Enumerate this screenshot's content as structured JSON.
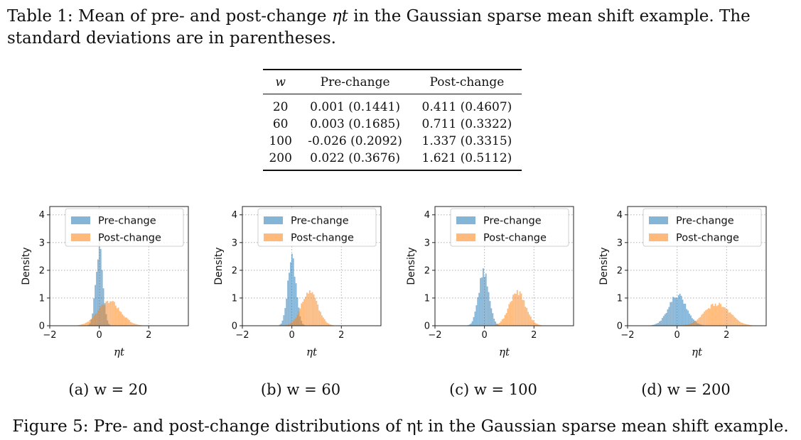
{
  "table_caption": {
    "prefix": "Table 1: Mean of pre- and post-change ",
    "symbol": "ηt",
    "suffix": " in the Gaussian sparse mean shift example.  The standard deviations are in parentheses."
  },
  "table": {
    "headers": [
      "w",
      "Pre-change",
      "Post-change"
    ],
    "rows": [
      [
        "20",
        "0.001 (0.1441)",
        "0.411 (0.4607)"
      ],
      [
        "60",
        "0.003 (0.1685)",
        "0.711 (0.3322)"
      ],
      [
        "100",
        "-0.026 (0.2092)",
        "1.337 (0.3315)"
      ],
      [
        "200",
        "0.022 (0.3676)",
        "1.621 (0.5112)"
      ]
    ]
  },
  "chart_data": [
    {
      "type": "histogram",
      "ylabel": "Density",
      "xlabel": "ηt",
      "xlim": [
        -2,
        3.6
      ],
      "ylim": [
        0,
        4.3
      ],
      "xticks": [
        "−2",
        "0",
        "2"
      ],
      "yticks": [
        "0",
        "1",
        "2",
        "3",
        "4"
      ],
      "legend": [
        "Pre-change",
        "Post-change"
      ],
      "legend_position": "top-right",
      "series": [
        {
          "name": "Pre-change",
          "mean": 0.001,
          "sd": 0.1441,
          "color": "#1f77b4"
        },
        {
          "name": "Post-change",
          "mean": 0.411,
          "sd": 0.4607,
          "color": "#ff7f0e"
        }
      ]
    },
    {
      "type": "histogram",
      "ylabel": "Density",
      "xlabel": "ηt",
      "xlim": [
        -2,
        3.6
      ],
      "ylim": [
        0,
        4.3
      ],
      "xticks": [
        "−2",
        "0",
        "2"
      ],
      "yticks": [
        "0",
        "1",
        "2",
        "3",
        "4"
      ],
      "legend": [
        "Pre-change",
        "Post-change"
      ],
      "legend_position": "top-right",
      "series": [
        {
          "name": "Pre-change",
          "mean": 0.003,
          "sd": 0.1685,
          "color": "#1f77b4"
        },
        {
          "name": "Post-change",
          "mean": 0.711,
          "sd": 0.3322,
          "color": "#ff7f0e"
        }
      ]
    },
    {
      "type": "histogram",
      "ylabel": "Density",
      "xlabel": "ηt",
      "xlim": [
        -2,
        3.6
      ],
      "ylim": [
        0,
        4.3
      ],
      "xticks": [
        "−2",
        "0",
        "2"
      ],
      "yticks": [
        "0",
        "1",
        "2",
        "3",
        "4"
      ],
      "legend": [
        "Pre-change",
        "Post-change"
      ],
      "legend_position": "top-right",
      "series": [
        {
          "name": "Pre-change",
          "mean": -0.026,
          "sd": 0.2092,
          "color": "#1f77b4"
        },
        {
          "name": "Post-change",
          "mean": 1.337,
          "sd": 0.3315,
          "color": "#ff7f0e"
        }
      ]
    },
    {
      "type": "histogram",
      "ylabel": "Density",
      "xlabel": "ηt",
      "xlim": [
        -2,
        3.6
      ],
      "ylim": [
        0,
        4.3
      ],
      "xticks": [
        "−2",
        "0",
        "2"
      ],
      "yticks": [
        "0",
        "1",
        "2",
        "3",
        "4"
      ],
      "legend": [
        "Pre-change",
        "Post-change"
      ],
      "legend_position": "top-right",
      "series": [
        {
          "name": "Pre-change",
          "mean": 0.022,
          "sd": 0.3676,
          "color": "#1f77b4"
        },
        {
          "name": "Post-change",
          "mean": 1.621,
          "sd": 0.5112,
          "color": "#ff7f0e"
        }
      ]
    }
  ],
  "subcaptions": [
    "(a) w = 20",
    "(b) w = 60",
    "(c) w = 100",
    "(d) w = 200"
  ],
  "figure_caption": "Figure 5: Pre- and post-change distributions of ηt in the Gaussian sparse mean shift example."
}
